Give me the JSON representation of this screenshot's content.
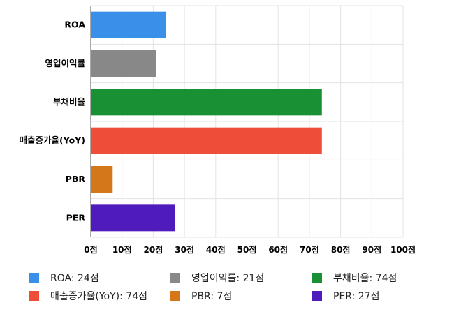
{
  "chart_data": {
    "type": "bar",
    "orientation": "horizontal",
    "categories": [
      "ROA",
      "영업이익률",
      "부채비율",
      "매출증가율(YoY)",
      "PBR",
      "PER"
    ],
    "values": [
      24,
      21,
      74,
      74,
      7,
      27
    ],
    "colors": [
      "#3a8fe8",
      "#888888",
      "#199034",
      "#ee4d3a",
      "#d4761a",
      "#4f1bbd"
    ],
    "xlim": [
      0,
      100
    ],
    "xticks": [
      0,
      10,
      20,
      30,
      40,
      50,
      60,
      70,
      80,
      90,
      100
    ],
    "tick_suffix": "점",
    "grid": true,
    "legend": {
      "position": "bottom",
      "items": [
        "ROA: 24점",
        "영업이익률: 21점",
        "부채비율: 74점",
        "매출증가율(YoY): 74점",
        "PBR: 7점",
        "PER: 27점"
      ]
    }
  }
}
